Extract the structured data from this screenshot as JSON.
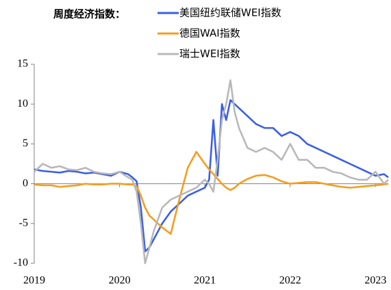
{
  "chart_data": {
    "type": "line",
    "title": "周度经济指数：",
    "x": [
      2019.0,
      2019.1,
      2019.2,
      2019.3,
      2019.4,
      2019.5,
      2019.6,
      2019.7,
      2019.8,
      2019.9,
      2020.0,
      2020.1,
      2020.15,
      2020.2,
      2020.25,
      2020.3,
      2020.35,
      2020.4,
      2020.45,
      2020.5,
      2020.6,
      2020.7,
      2020.8,
      2020.9,
      2021.0,
      2021.05,
      2021.1,
      2021.15,
      2021.2,
      2021.25,
      2021.3,
      2021.35,
      2021.4,
      2021.5,
      2021.6,
      2021.7,
      2021.8,
      2021.9,
      2022.0,
      2022.1,
      2022.2,
      2022.3,
      2022.4,
      2022.5,
      2022.6,
      2022.7,
      2022.8,
      2022.9,
      2023.0,
      2023.1,
      2023.15
    ],
    "series": [
      {
        "name": "美国纽约联储WEI指数",
        "color": "#3a5fe6",
        "values": [
          1.8,
          1.6,
          1.5,
          1.4,
          1.6,
          1.5,
          1.3,
          1.4,
          1.2,
          1.0,
          1.5,
          1.2,
          0.8,
          0.3,
          -3,
          -8.5,
          -8,
          -7,
          -6,
          -5,
          -3.5,
          -2.5,
          -1.5,
          -1,
          -0.5,
          0.5,
          8,
          1,
          10,
          8,
          10.5,
          10,
          9.5,
          8.5,
          7.5,
          7,
          7,
          6,
          6.5,
          6,
          5,
          4.5,
          4,
          3.5,
          3,
          2.5,
          2,
          1.5,
          1,
          1.2,
          0.8
        ]
      },
      {
        "name": "德国WAI指数",
        "color": "#f59d1c",
        "values": [
          -0.1,
          -0.2,
          -0.2,
          -0.4,
          -0.3,
          -0.2,
          0,
          -0.1,
          -0.1,
          0,
          0,
          -0.1,
          -0.1,
          -0.3,
          -1.5,
          -3,
          -4,
          -4.5,
          -5,
          -5.5,
          -6.3,
          -2,
          2,
          4,
          2.5,
          1.8,
          1.2,
          0.6,
          0,
          -0.5,
          -0.8,
          -0.5,
          0,
          0.6,
          1,
          1.1,
          0.8,
          0.3,
          0,
          0.1,
          0.2,
          0.2,
          0,
          -0.2,
          -0.4,
          -0.5,
          -0.4,
          -0.3,
          -0.2,
          -0.1,
          0
        ]
      },
      {
        "name": "瑞士WEI指数",
        "color": "#b8b8b8",
        "values": [
          1.5,
          2.5,
          2,
          2.2,
          1.8,
          1.7,
          2,
          1.5,
          1.3,
          1.2,
          1.5,
          0.8,
          0.5,
          -1,
          -5,
          -10,
          -8,
          -6,
          -4.5,
          -3,
          -2,
          -1.5,
          -1,
          -0.5,
          0.5,
          0,
          -1,
          3,
          8,
          10,
          13,
          9,
          7,
          4.5,
          4,
          4.5,
          4,
          3,
          5,
          3,
          3,
          2,
          2,
          1.5,
          1.3,
          0.8,
          0.5,
          0.5,
          1.5,
          0,
          0.5
        ]
      }
    ],
    "xlim": [
      2019,
      2023.15
    ],
    "xticks": [
      2019,
      2020,
      2021,
      2022,
      2023
    ],
    "ylim": [
      -10,
      15
    ],
    "yticks": [
      -10,
      -5,
      0,
      5,
      10,
      15
    ]
  }
}
